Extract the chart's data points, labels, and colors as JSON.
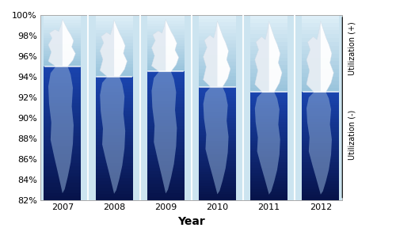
{
  "years": [
    2007,
    2008,
    2009,
    2010,
    2011,
    2012
  ],
  "waterline": [
    95.0,
    94.0,
    94.5,
    93.0,
    92.5,
    92.5
  ],
  "ymin": 82,
  "ymax": 100,
  "yticks": [
    82,
    84,
    86,
    88,
    90,
    92,
    94,
    96,
    98,
    100
  ],
  "xlabel": "Year",
  "ylabel_pos": "Utilization (+)",
  "ylabel_neg": "Utilization (-)",
  "sky_color": "#cce4f0",
  "water_deep": "#07134a",
  "water_mid": "#1a3a9c",
  "bar_width": 0.72,
  "axis_fontsize": 8,
  "xlabel_fontsize": 10
}
